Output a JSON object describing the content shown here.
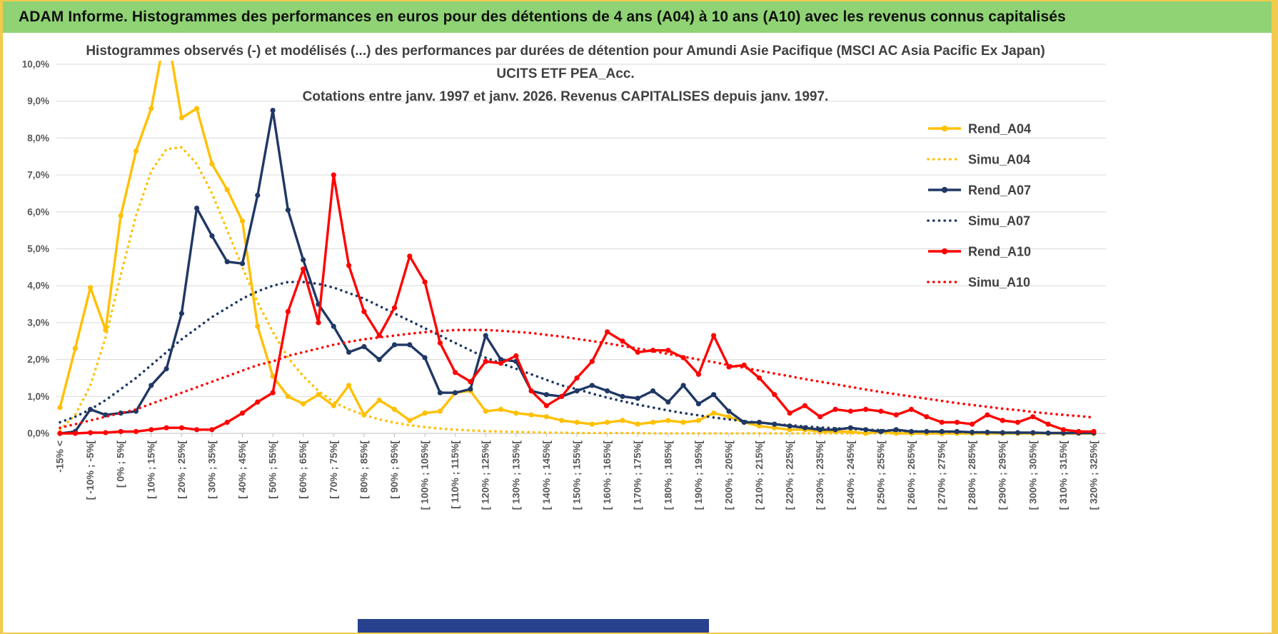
{
  "window": {
    "header": "ADAM Informe. Histogrammes des performances en euros pour des détentions de 4 ans (A04) à 10 ans (A10) avec les revenus connus capitalisés",
    "header_bg": "#8FD374"
  },
  "axis": {
    "text_color": "#595959",
    "grid_color": "#D9D9D9",
    "axis_color": "#BFBFBF",
    "title_color": "#404040"
  },
  "chart_data": {
    "type": "line",
    "title_lines": [
      "Histogrammes observés (-) et modélisés (...) des performances par durées de détention pour Amundi Asie Pacifique (MSCI AC Asia Pacific Ex Japan)",
      "UCITS ETF PEA_Acc.",
      "Cotations entre janv. 1997 et janv. 2026. Revenus CAPITALISES depuis janv. 1997."
    ],
    "ylim": [
      0,
      10
    ],
    "y_ticks": [
      "10,0%",
      "9,0%",
      "8,0%",
      "7,0%",
      "6,0%",
      "5,0%",
      "4,0%",
      "3,0%",
      "2,0%",
      "1,0%",
      "0,0%"
    ],
    "grid": true,
    "legend_position": "right",
    "n_bins": 69,
    "label_every": 2,
    "x_labels": [
      "-15% <",
      "[ -10% ; -5%[",
      "[ 0% ; 5%[",
      "[ 10% ; 15%[",
      "[ 20% ; 25%[",
      "[ 30% ; 35%[",
      "[ 40% ; 45%[",
      "[ 50% ; 55%[",
      "[ 60% ; 65%[",
      "[ 70% ; 75%[",
      "[ 80% ; 85%[",
      "[ 90% ; 95%[",
      "[ 100% ; 105%[",
      "[ 110% ; 115%[",
      "[ 120% ; 125%[",
      "[ 130% ; 135%[",
      "[ 140% ; 145%[",
      "[ 150% ; 155%[",
      "[ 160% ; 165%[",
      "[ 170% ; 175%[",
      "[ 180% ; 185%[",
      "[ 190% ; 195%[",
      "[ 200% ; 205%[",
      "[ 210% ; 215%[",
      "[ 220% ; 225%[",
      "[ 230% ; 235%[",
      "[ 240% ; 245%[",
      "[ 250% ; 255%[",
      "[ 260% ; 265%[",
      "[ 270% ; 275%[",
      "[ 280% ; 285%[",
      "[ 290% ; 295%[",
      "[ 300% ; 305%[",
      "[ 310% ; 315%[",
      "[ 320% ; 325%["
    ],
    "series": [
      {
        "name": "Rend_A04",
        "color": "#FFC000",
        "style": "solid",
        "markers": true,
        "values": [
          0.7,
          2.3,
          3.95,
          2.8,
          5.9,
          7.65,
          8.8,
          11.0,
          8.55,
          8.8,
          7.3,
          6.6,
          5.75,
          2.9,
          1.55,
          1.0,
          0.8,
          1.05,
          0.75,
          1.3,
          0.5,
          0.9,
          0.65,
          0.35,
          0.55,
          0.6,
          1.1,
          1.15,
          0.6,
          0.65,
          0.55,
          0.5,
          0.45,
          0.35,
          0.3,
          0.25,
          0.3,
          0.35,
          0.25,
          0.3,
          0.35,
          0.3,
          0.35,
          0.55,
          0.45,
          0.3,
          0.2,
          0.15,
          0.1,
          0.1,
          0.05,
          0.05,
          0.05,
          0,
          0.05,
          0,
          0,
          0,
          0,
          0,
          0,
          0,
          0,
          0,
          0,
          0,
          0,
          0,
          0
        ]
      },
      {
        "name": "Simu_A04",
        "color": "#FFC000",
        "style": "dotted",
        "markers": false,
        "values": [
          0.1,
          0.5,
          1.3,
          2.6,
          4.3,
          5.9,
          7.1,
          7.7,
          7.75,
          7.3,
          6.5,
          5.5,
          4.5,
          3.55,
          2.75,
          2.05,
          1.55,
          1.15,
          0.85,
          0.65,
          0.5,
          0.38,
          0.29,
          0.22,
          0.17,
          0.13,
          0.1,
          0.08,
          0.06,
          0.05,
          0.04,
          0.03,
          0.02,
          0.02,
          0.01,
          0.01,
          0.01,
          0.01,
          0.01,
          0,
          0,
          0,
          0,
          0,
          0,
          0,
          0,
          0,
          0,
          0,
          0,
          0,
          0,
          0,
          0,
          0,
          0,
          0,
          0,
          0,
          0,
          0,
          0,
          0,
          0,
          0,
          0,
          0,
          0
        ]
      },
      {
        "name": "Rend_A07",
        "color": "#203864",
        "style": "solid",
        "markers": true,
        "values": [
          0,
          0.05,
          0.65,
          0.5,
          0.55,
          0.6,
          1.3,
          1.75,
          3.25,
          6.1,
          5.35,
          4.65,
          4.6,
          6.45,
          8.75,
          6.05,
          4.7,
          3.5,
          2.9,
          2.2,
          2.35,
          2.0,
          2.4,
          2.4,
          2.05,
          1.1,
          1.1,
          1.2,
          2.65,
          2.0,
          1.95,
          1.15,
          1.05,
          1.0,
          1.15,
          1.3,
          1.15,
          1.0,
          0.95,
          1.15,
          0.85,
          1.3,
          0.8,
          1.05,
          0.6,
          0.3,
          0.3,
          0.25,
          0.2,
          0.15,
          0.1,
          0.1,
          0.15,
          0.1,
          0.05,
          0.1,
          0.05,
          0.05,
          0.05,
          0.05,
          0.03,
          0.03,
          0.02,
          0.02,
          0.02,
          0.01,
          0.01,
          0.01,
          0.01
        ]
      },
      {
        "name": "Simu_A07",
        "color": "#203864",
        "style": "dotted",
        "markers": false,
        "values": [
          0.3,
          0.45,
          0.65,
          0.9,
          1.2,
          1.5,
          1.85,
          2.2,
          2.55,
          2.85,
          3.15,
          3.4,
          3.65,
          3.85,
          4.0,
          4.1,
          4.1,
          4.05,
          3.95,
          3.8,
          3.65,
          3.45,
          3.25,
          3.05,
          2.85,
          2.65,
          2.45,
          2.25,
          2.05,
          1.9,
          1.75,
          1.6,
          1.45,
          1.3,
          1.2,
          1.08,
          0.97,
          0.87,
          0.78,
          0.7,
          0.62,
          0.55,
          0.49,
          0.43,
          0.38,
          0.33,
          0.29,
          0.25,
          0.22,
          0.19,
          0.16,
          0.14,
          0.12,
          0.1,
          0.09,
          0.07,
          0.06,
          0.05,
          0.04,
          0.04,
          0.03,
          0.03,
          0.02,
          0.02,
          0.02,
          0.01,
          0.01,
          0.01,
          0.01
        ]
      },
      {
        "name": "Rend_A10",
        "color": "#FF0000",
        "style": "solid",
        "markers": true,
        "values": [
          0,
          0,
          0.02,
          0.02,
          0.05,
          0.05,
          0.1,
          0.15,
          0.15,
          0.1,
          0.1,
          0.3,
          0.55,
          0.85,
          1.1,
          3.3,
          4.45,
          3.0,
          7.0,
          4.55,
          3.3,
          2.65,
          3.4,
          4.8,
          4.1,
          2.45,
          1.65,
          1.4,
          1.95,
          1.9,
          2.1,
          1.15,
          0.75,
          1.0,
          1.5,
          1.95,
          2.75,
          2.5,
          2.2,
          2.25,
          2.25,
          2.05,
          1.6,
          2.65,
          1.8,
          1.85,
          1.5,
          1.05,
          0.55,
          0.75,
          0.45,
          0.65,
          0.6,
          0.65,
          0.6,
          0.5,
          0.65,
          0.45,
          0.3,
          0.3,
          0.25,
          0.5,
          0.35,
          0.3,
          0.45,
          0.25,
          0.1,
          0.05,
          0.05
        ]
      },
      {
        "name": "Simu_A10",
        "color": "#FF0000",
        "style": "dotted",
        "markers": false,
        "values": [
          0.15,
          0.25,
          0.35,
          0.45,
          0.55,
          0.65,
          0.8,
          0.95,
          1.1,
          1.25,
          1.4,
          1.55,
          1.7,
          1.85,
          1.95,
          2.1,
          2.2,
          2.3,
          2.4,
          2.48,
          2.55,
          2.6,
          2.65,
          2.7,
          2.74,
          2.77,
          2.8,
          2.8,
          2.8,
          2.78,
          2.75,
          2.72,
          2.67,
          2.62,
          2.56,
          2.5,
          2.44,
          2.37,
          2.3,
          2.23,
          2.15,
          2.08,
          2.0,
          1.93,
          1.85,
          1.78,
          1.7,
          1.62,
          1.55,
          1.47,
          1.4,
          1.33,
          1.26,
          1.19,
          1.12,
          1.06,
          1.0,
          0.94,
          0.88,
          0.82,
          0.77,
          0.72,
          0.67,
          0.63,
          0.58,
          0.54,
          0.5,
          0.47,
          0.43
        ]
      }
    ]
  }
}
